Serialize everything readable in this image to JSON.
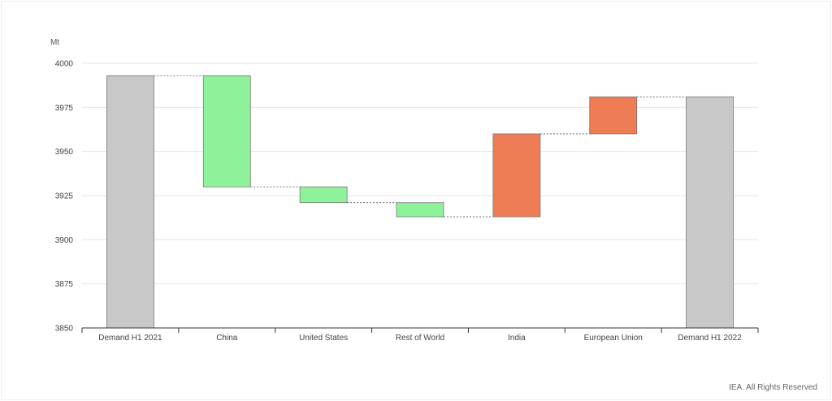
{
  "chart_data": {
    "type": "waterfall",
    "unit_label": "Mt",
    "categories": [
      "Demand H1 2021",
      "China",
      "United States",
      "Rest of World",
      "India",
      "European Union",
      "Demand H1 2022"
    ],
    "bars": [
      {
        "label": "Demand H1 2021",
        "kind": "total",
        "start": 3850,
        "end": 3993
      },
      {
        "label": "China",
        "kind": "decrease",
        "start": 3993,
        "end": 3930
      },
      {
        "label": "United States",
        "kind": "decrease",
        "start": 3930,
        "end": 3921
      },
      {
        "label": "Rest of World",
        "kind": "decrease",
        "start": 3921,
        "end": 3913
      },
      {
        "label": "India",
        "kind": "increase",
        "start": 3913,
        "end": 3960
      },
      {
        "label": "European Union",
        "kind": "increase",
        "start": 3960,
        "end": 3981
      },
      {
        "label": "Demand H1 2022",
        "kind": "total",
        "start": 3850,
        "end": 3981
      }
    ],
    "ylim": [
      3850,
      4000
    ],
    "yticks": [
      3850,
      3875,
      3900,
      3925,
      3950,
      3975,
      4000
    ],
    "grid": true,
    "colors": {
      "total": "#c8c8c8",
      "decrease": "#8ef29a",
      "increase": "#ee7c55"
    }
  },
  "credit": "IEA. All Rights Reserved"
}
